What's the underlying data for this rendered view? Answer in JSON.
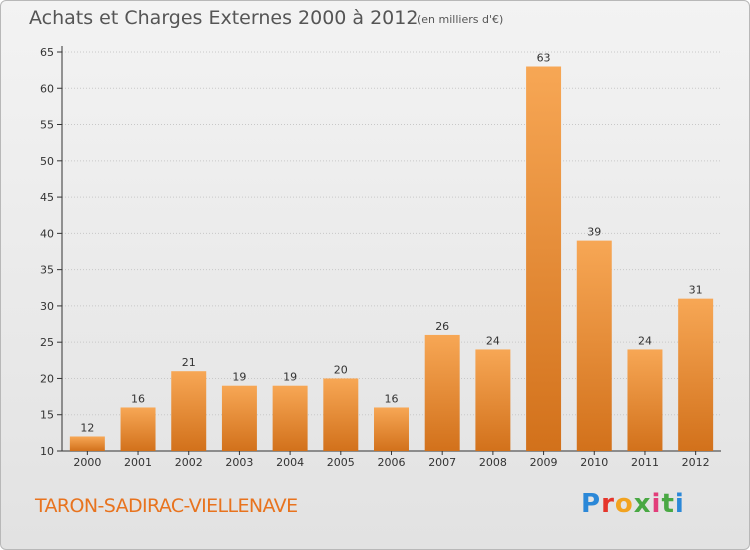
{
  "title": "Achats et Charges Externes 2000 à 2012",
  "subtitle": "(en milliers d'€)",
  "commune": "TARON-SADIRAC-VIELLENAVE",
  "logo": {
    "text": "Proxiti"
  },
  "colors": {
    "bar_light": "#f7a755",
    "bar_dark": "#d2711b",
    "axis": "#333333",
    "grid": "#c8c8c8",
    "text": "#333333",
    "accent": "#e8731e"
  },
  "chart_data": {
    "type": "bar",
    "title": "Achats et Charges Externes 2000 à 2012",
    "subtitle": "(en milliers d'€)",
    "xlabel": "",
    "ylabel": "",
    "categories": [
      "2000",
      "2001",
      "2002",
      "2003",
      "2004",
      "2005",
      "2006",
      "2007",
      "2008",
      "2009",
      "2010",
      "2011",
      "2012"
    ],
    "values": [
      12,
      16,
      21,
      19,
      19,
      20,
      16,
      26,
      24,
      63,
      39,
      24,
      31
    ],
    "ylim": [
      10,
      65
    ],
    "yticks": [
      10,
      15,
      20,
      25,
      30,
      35,
      40,
      45,
      50,
      55,
      60,
      65
    ],
    "grid": true,
    "data_labels": true
  }
}
